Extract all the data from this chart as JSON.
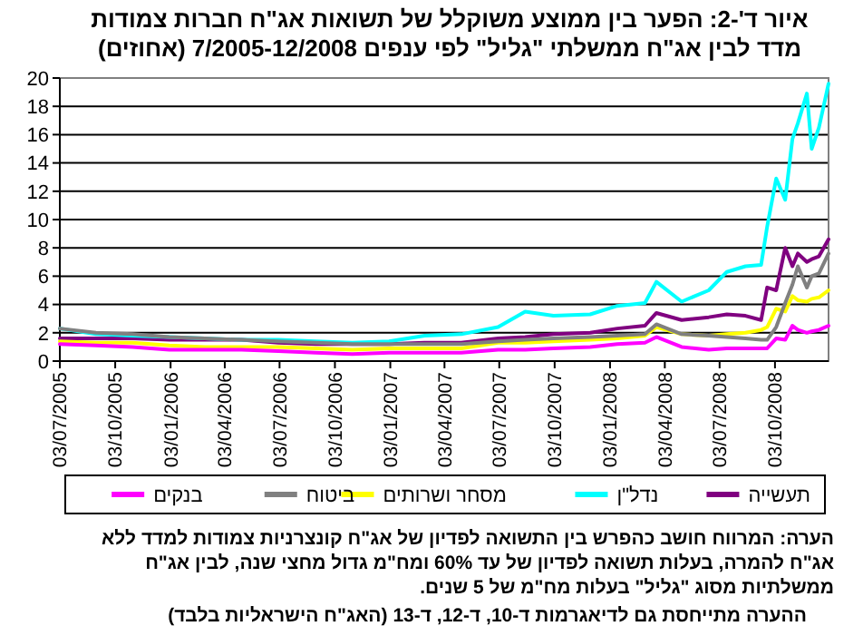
{
  "chart_data": {
    "type": "line",
    "title": "איור ד'-2: הפער בין ממוצע משוקלל של תשואות אג\"ח חברות צמודות\nמדד לבין אג\"ח ממשלתי \"גליל\" לפי ענפים 7/2005-12/2008 (אחוזים)",
    "x": [
      "2005-07-03",
      "2005-09-01",
      "2005-11-01",
      "2006-01-01",
      "2006-03-01",
      "2006-05-01",
      "2006-07-01",
      "2006-09-01",
      "2006-11-01",
      "2007-01-01",
      "2007-03-01",
      "2007-05-01",
      "2007-07-01",
      "2007-08-15",
      "2007-10-01",
      "2007-12-01",
      "2008-01-15",
      "2008-03-01",
      "2008-03-20",
      "2008-05-01",
      "2008-06-15",
      "2008-07-15",
      "2008-08-15",
      "2008-09-10",
      "2008-09-20",
      "2008-10-05",
      "2008-10-20",
      "2008-11-01",
      "2008-11-10",
      "2008-11-25",
      "2008-12-03",
      "2008-12-15",
      "2008-12-31"
    ],
    "series": [
      {
        "name": "תעשייה",
        "color": "#800080",
        "values": [
          1.6,
          1.6,
          1.6,
          1.5,
          1.5,
          1.5,
          1.3,
          1.2,
          1.2,
          1.2,
          1.3,
          1.3,
          1.6,
          1.7,
          1.9,
          2.0,
          2.3,
          2.5,
          3.4,
          2.9,
          3.1,
          3.3,
          3.2,
          2.9,
          5.2,
          5.0,
          8.0,
          6.7,
          7.6,
          7.0,
          7.2,
          7.4,
          8.6
        ]
      },
      {
        "name": "נדל\"ן",
        "color": "#00ffff",
        "values": [
          2.3,
          1.9,
          1.8,
          1.7,
          1.6,
          1.5,
          1.5,
          1.4,
          1.3,
          1.4,
          1.8,
          1.9,
          2.4,
          3.5,
          3.2,
          3.3,
          3.9,
          4.1,
          5.6,
          4.2,
          5.0,
          6.3,
          6.7,
          6.8,
          9.5,
          12.9,
          11.4,
          15.7,
          16.8,
          18.9,
          15.0,
          16.5,
          19.6
        ]
      },
      {
        "name": "מסחר ושרותים",
        "color": "#ffff00",
        "values": [
          1.4,
          1.3,
          1.3,
          1.1,
          1.0,
          1.0,
          1.0,
          0.9,
          0.8,
          0.9,
          0.9,
          0.9,
          1.3,
          1.3,
          1.4,
          1.5,
          1.6,
          1.8,
          2.4,
          1.9,
          1.8,
          1.9,
          2.0,
          2.2,
          2.4,
          3.7,
          3.5,
          4.6,
          4.3,
          4.2,
          4.4,
          4.5,
          5.0
        ]
      },
      {
        "name": "ביטוח",
        "color": "#808080",
        "values": [
          2.3,
          2.0,
          1.9,
          1.7,
          1.6,
          1.5,
          1.4,
          1.3,
          1.2,
          1.2,
          1.2,
          1.2,
          1.4,
          1.5,
          1.6,
          1.7,
          1.8,
          1.9,
          2.6,
          1.9,
          1.8,
          1.7,
          1.6,
          1.5,
          1.5,
          2.4,
          4.1,
          5.4,
          6.7,
          5.2,
          6.0,
          6.2,
          7.6
        ]
      },
      {
        "name": "בנקים",
        "color": "#ff00ff",
        "values": [
          1.2,
          1.1,
          1.0,
          0.8,
          0.8,
          0.8,
          0.7,
          0.6,
          0.5,
          0.6,
          0.6,
          0.6,
          0.8,
          0.8,
          0.9,
          1.0,
          1.2,
          1.3,
          1.7,
          1.0,
          0.8,
          0.9,
          0.9,
          0.9,
          0.9,
          1.6,
          1.5,
          2.5,
          2.2,
          2.0,
          2.1,
          2.2,
          2.5
        ]
      }
    ],
    "xlim": [
      "2005-07-03",
      "2008-12-31"
    ],
    "xticks": [
      {
        "value": "2005-07-03",
        "label": "03/07/2005"
      },
      {
        "value": "2005-10-03",
        "label": "03/10/2005"
      },
      {
        "value": "2006-01-03",
        "label": "03/01/2006"
      },
      {
        "value": "2006-04-03",
        "label": "03/04/2006"
      },
      {
        "value": "2006-07-03",
        "label": "03/07/2006"
      },
      {
        "value": "2006-10-03",
        "label": "03/10/2006"
      },
      {
        "value": "2007-01-03",
        "label": "03/01/2007"
      },
      {
        "value": "2007-04-03",
        "label": "03/04/2007"
      },
      {
        "value": "2007-07-03",
        "label": "03/07/2007"
      },
      {
        "value": "2007-10-03",
        "label": "03/10/2007"
      },
      {
        "value": "2008-01-03",
        "label": "03/01/2008"
      },
      {
        "value": "2008-04-03",
        "label": "03/04/2008"
      },
      {
        "value": "2008-07-03",
        "label": "03/07/2008"
      },
      {
        "value": "2008-10-03",
        "label": "03/10/2008"
      }
    ],
    "ylim": [
      0,
      20
    ],
    "yticks": [
      0,
      2,
      4,
      6,
      8,
      10,
      12,
      14,
      16,
      18,
      20
    ],
    "grid": "y",
    "legend": "bottom",
    "marker": "none",
    "line_style": "solid",
    "annotations": [
      "הערה: המרווח חושב כהפרש בין התשואה לפדיון של אג\"ח קונצרניות צמודות למדד ללא אג\"ח להמרה, בעלות תשואה לפדיון של עד 60% ומח\"מ גדול מחצי שנה, לבין אג\"ח ממשלתיות מסוג \"גליל\" בעלות מח\"מ של 5 שנים.",
      "ההערה מתייחסת גם לדיאגרמות ד-10, ד-12, ד-13 (האג\"ח הישראליות בלבד)"
    ]
  }
}
